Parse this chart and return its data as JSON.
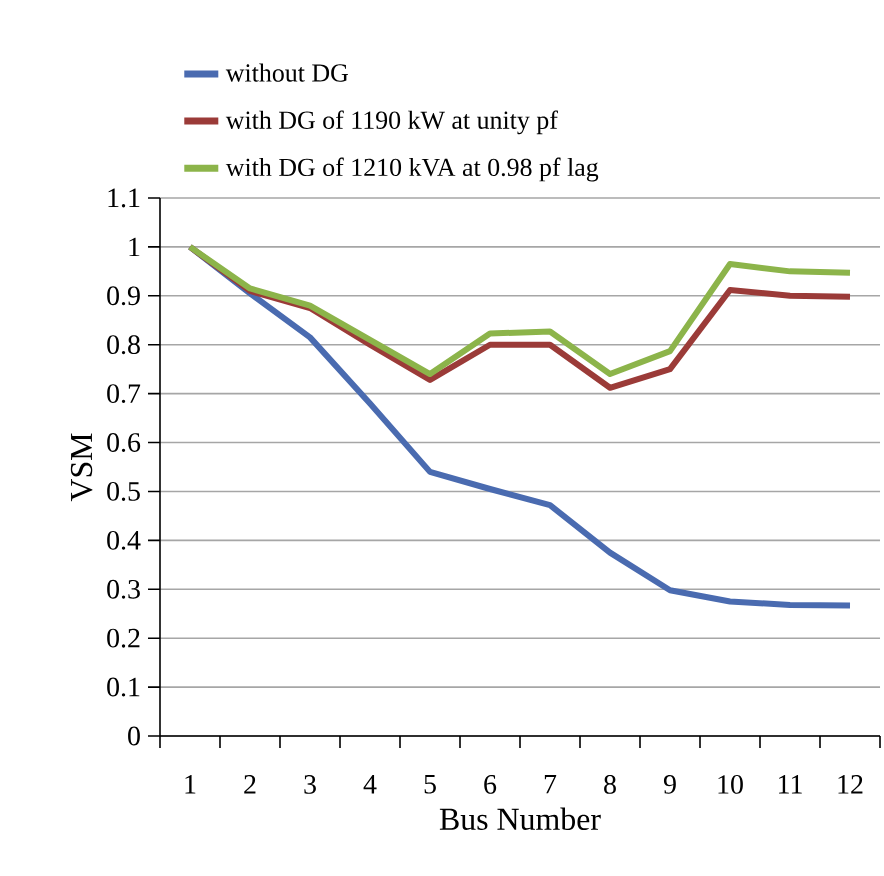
{
  "chart_data": {
    "type": "line",
    "xlabel": "Bus Number",
    "ylabel": "VSM",
    "categories": [
      "1",
      "2",
      "3",
      "4",
      "5",
      "6",
      "7",
      "8",
      "9",
      "10",
      "11",
      "12"
    ],
    "series": [
      {
        "name": "without DG",
        "color": "#4a6bb0",
        "values": [
          1,
          0.905,
          0.815,
          0.68,
          0.54,
          0.505,
          0.472,
          0.375,
          0.298,
          0.275,
          0.268,
          0.267
        ]
      },
      {
        "name": "with DG of 1190 kW at unity pf",
        "color": "#9b3b38",
        "values": [
          1,
          0.91,
          0.875,
          0.8,
          0.728,
          0.8,
          0.8,
          0.712,
          0.75,
          0.912,
          0.9,
          0.898
        ]
      },
      {
        "name": "with DG of 1210 kVA at 0.98 pf lag",
        "color": "#8cb44a",
        "values": [
          1,
          0.915,
          0.88,
          0.81,
          0.74,
          0.823,
          0.827,
          0.74,
          0.787,
          0.965,
          0.95,
          0.947
        ]
      }
    ],
    "ylim": [
      0,
      1.1
    ],
    "yticks": [
      0,
      0.1,
      0.2,
      0.3,
      0.4,
      0.5,
      0.6,
      0.7,
      0.8,
      0.9,
      1,
      1.1
    ],
    "grid": "y",
    "legend": "top",
    "marker": "none",
    "line_style": "solid"
  }
}
